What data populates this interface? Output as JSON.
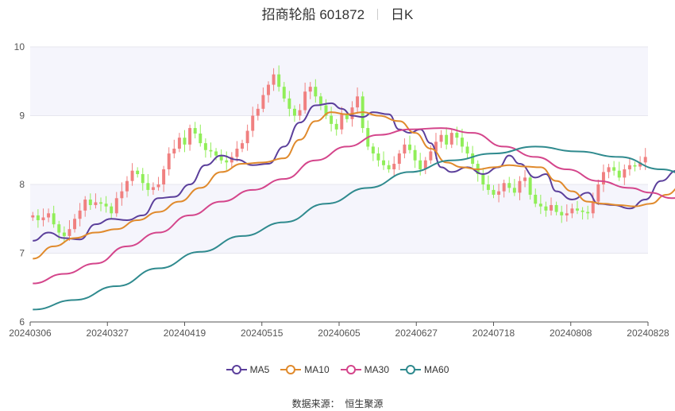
{
  "title": {
    "name": "招商轮船 601872",
    "period": "日K"
  },
  "source": {
    "label": "数据来源：",
    "value": "恒生聚源"
  },
  "legend": [
    {
      "label": "MA5",
      "color": "#5b3f9b"
    },
    {
      "label": "MA10",
      "color": "#e08a2c"
    },
    {
      "label": "MA30",
      "color": "#d4458b"
    },
    {
      "label": "MA60",
      "color": "#2f8a8e"
    }
  ],
  "chart_data": {
    "type": "candlestick",
    "title": "招商轮船 601872 日K",
    "ylim": [
      6,
      10
    ],
    "yticks": [
      "6",
      "7",
      "8",
      "9",
      "10"
    ],
    "xticks": [
      "20240306",
      "20240327",
      "20240419",
      "20240515",
      "20240605",
      "20240627",
      "20240718",
      "20240808",
      "20240828"
    ],
    "up_color": "#f08080",
    "down_color": "#90ee58",
    "candle_closes": [
      7.55,
      7.48,
      7.52,
      7.58,
      7.42,
      7.3,
      7.25,
      7.35,
      7.5,
      7.62,
      7.78,
      7.7,
      7.74,
      7.72,
      7.68,
      7.58,
      7.8,
      7.9,
      8.05,
      8.2,
      8.15,
      8.02,
      7.92,
      7.96,
      8.0,
      8.22,
      8.45,
      8.52,
      8.68,
      8.58,
      8.82,
      8.74,
      8.6,
      8.5,
      8.48,
      8.42,
      8.35,
      8.32,
      8.4,
      8.52,
      8.6,
      8.78,
      9.0,
      9.1,
      9.3,
      9.45,
      9.6,
      9.42,
      9.25,
      9.1,
      9.0,
      9.08,
      9.35,
      9.42,
      9.28,
      9.15,
      9.0,
      8.88,
      8.8,
      9.02,
      8.95,
      9.12,
      9.28,
      8.82,
      8.55,
      8.45,
      8.35,
      8.28,
      8.22,
      8.3,
      8.45,
      8.58,
      8.5,
      8.35,
      8.22,
      8.35,
      8.48,
      8.62,
      8.72,
      8.58,
      8.75,
      8.68,
      8.55,
      8.45,
      8.3,
      8.15,
      8.0,
      7.92,
      7.85,
      7.9,
      8.02,
      7.95,
      7.88,
      8.05,
      8.1,
      7.85,
      7.72,
      7.68,
      7.62,
      7.7,
      7.6,
      7.55,
      7.58,
      7.65,
      7.62,
      7.6,
      7.58,
      7.75,
      8.0,
      8.18,
      8.25,
      8.2,
      8.1,
      8.22,
      8.28,
      8.26,
      8.32,
      8.4
    ],
    "series": [
      {
        "name": "MA5",
        "color": "#5b3f9b",
        "values": [
          [
            0,
            7.18
          ],
          [
            3,
            7.3
          ],
          [
            6,
            7.22
          ],
          [
            9,
            7.2
          ],
          [
            12,
            7.42
          ],
          [
            15,
            7.5
          ],
          [
            18,
            7.48
          ],
          [
            21,
            7.55
          ],
          [
            24,
            7.8
          ],
          [
            27,
            7.82
          ],
          [
            30,
            8.0
          ],
          [
            33,
            8.28
          ],
          [
            36,
            8.42
          ],
          [
            39,
            8.36
          ],
          [
            42,
            8.28
          ],
          [
            45,
            8.3
          ],
          [
            48,
            8.55
          ],
          [
            51,
            8.9
          ],
          [
            54,
            9.15
          ],
          [
            57,
            9.18
          ],
          [
            59,
            9.1
          ],
          [
            61,
            9.0
          ],
          [
            63,
            8.98
          ],
          [
            65,
            9.05
          ],
          [
            68,
            9.02
          ],
          [
            70,
            8.8
          ],
          [
            72,
            8.75
          ],
          [
            74,
            8.8
          ],
          [
            76,
            8.6
          ],
          [
            78,
            8.25
          ],
          [
            80,
            8.18
          ],
          [
            83,
            8.25
          ],
          [
            86,
            8.15
          ],
          [
            89,
            8.25
          ],
          [
            91,
            8.42
          ],
          [
            93,
            8.3
          ],
          [
            96,
            8.1
          ],
          [
            98,
            8.15
          ],
          [
            100,
            7.9
          ],
          [
            103,
            7.78
          ],
          [
            106,
            7.88
          ],
          [
            108,
            7.72
          ],
          [
            111,
            7.7
          ],
          [
            114,
            7.65
          ],
          [
            117,
            7.78
          ],
          [
            120,
            8.05
          ],
          [
            123,
            8.2
          ],
          [
            127,
            8.22
          ]
        ]
      },
      {
        "name": "MA10",
        "color": "#e08a2c",
        "values": [
          [
            0,
            6.92
          ],
          [
            4,
            7.1
          ],
          [
            8,
            7.22
          ],
          [
            12,
            7.3
          ],
          [
            16,
            7.35
          ],
          [
            20,
            7.48
          ],
          [
            24,
            7.6
          ],
          [
            28,
            7.75
          ],
          [
            32,
            7.95
          ],
          [
            36,
            8.18
          ],
          [
            40,
            8.3
          ],
          [
            44,
            8.32
          ],
          [
            48,
            8.38
          ],
          [
            51,
            8.65
          ],
          [
            54,
            8.92
          ],
          [
            57,
            9.05
          ],
          [
            60,
            9.02
          ],
          [
            63,
            9.05
          ],
          [
            66,
            9.0
          ],
          [
            70,
            8.92
          ],
          [
            73,
            8.75
          ],
          [
            76,
            8.52
          ],
          [
            79,
            8.32
          ],
          [
            82,
            8.25
          ],
          [
            85,
            8.22
          ],
          [
            88,
            8.25
          ],
          [
            91,
            8.28
          ],
          [
            94,
            8.26
          ],
          [
            97,
            8.25
          ],
          [
            100,
            8.05
          ],
          [
            103,
            7.9
          ],
          [
            106,
            7.75
          ],
          [
            109,
            7.72
          ],
          [
            112,
            7.7
          ],
          [
            115,
            7.68
          ],
          [
            118,
            7.72
          ],
          [
            121,
            7.85
          ],
          [
            124,
            7.98
          ],
          [
            127,
            8.12
          ]
        ]
      },
      {
        "name": "MA30",
        "color": "#d4458b",
        "values": [
          [
            0,
            6.56
          ],
          [
            6,
            6.7
          ],
          [
            12,
            6.85
          ],
          [
            18,
            7.1
          ],
          [
            24,
            7.3
          ],
          [
            30,
            7.55
          ],
          [
            36,
            7.75
          ],
          [
            42,
            7.92
          ],
          [
            48,
            8.08
          ],
          [
            54,
            8.35
          ],
          [
            60,
            8.55
          ],
          [
            66,
            8.72
          ],
          [
            72,
            8.8
          ],
          [
            78,
            8.82
          ],
          [
            84,
            8.75
          ],
          [
            90,
            8.55
          ],
          [
            96,
            8.4
          ],
          [
            102,
            8.22
          ],
          [
            108,
            8.05
          ],
          [
            114,
            7.95
          ],
          [
            118,
            7.88
          ],
          [
            122,
            7.8
          ],
          [
            127,
            7.88
          ]
        ]
      },
      {
        "name": "MA60",
        "color": "#2f8a8e",
        "values": [
          [
            0,
            6.18
          ],
          [
            8,
            6.32
          ],
          [
            16,
            6.52
          ],
          [
            24,
            6.78
          ],
          [
            32,
            7.02
          ],
          [
            40,
            7.25
          ],
          [
            48,
            7.45
          ],
          [
            56,
            7.72
          ],
          [
            64,
            7.95
          ],
          [
            72,
            8.18
          ],
          [
            80,
            8.35
          ],
          [
            88,
            8.45
          ],
          [
            96,
            8.55
          ],
          [
            104,
            8.48
          ],
          [
            112,
            8.4
          ],
          [
            120,
            8.22
          ],
          [
            127,
            8.06
          ]
        ]
      }
    ]
  }
}
